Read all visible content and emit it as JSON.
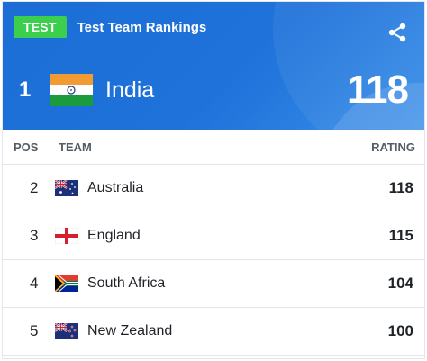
{
  "header": {
    "badge": "TEST",
    "title": "Test Team Rankings",
    "share_icon": "share-icon",
    "colors": {
      "header_blue": "#1e72da",
      "badge_green": "#3ccf4e"
    }
  },
  "leader": {
    "pos": "1",
    "team": "India",
    "rating": "118",
    "flag_icon": "india-flag-icon"
  },
  "columns": {
    "pos": "POS",
    "team": "TEAM",
    "rating": "RATING"
  },
  "rows": [
    {
      "pos": "2",
      "team": "Australia",
      "rating": "118",
      "flag_icon": "australia-flag-icon"
    },
    {
      "pos": "3",
      "team": "England",
      "rating": "115",
      "flag_icon": "england-flag-icon"
    },
    {
      "pos": "4",
      "team": "South Africa",
      "rating": "104",
      "flag_icon": "south-africa-flag-icon"
    },
    {
      "pos": "5",
      "team": "New Zealand",
      "rating": "100",
      "flag_icon": "new-zealand-flag-icon"
    }
  ]
}
